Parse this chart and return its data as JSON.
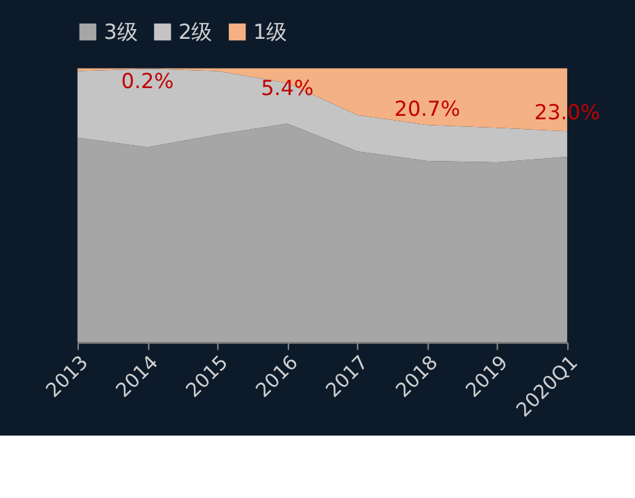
{
  "chart_data": {
    "type": "area",
    "stacked": true,
    "legend": "top",
    "categories": [
      "2013",
      "2014",
      "2015",
      "2016",
      "2017",
      "2018",
      "2019",
      "2020Q1"
    ],
    "series": [
      {
        "name": "3级",
        "color": "#a6a6a6",
        "values": [
          74.7,
          71.2,
          75.8,
          79.8,
          69.7,
          66.2,
          65.7,
          67.7
        ]
      },
      {
        "name": "2级",
        "color": "#c4c4c4",
        "values": [
          24.3,
          28.6,
          23.2,
          14.8,
          13.3,
          13.1,
          12.6,
          9.3
        ]
      },
      {
        "name": "1级",
        "color": "#f4b183",
        "values": [
          1.0,
          0.2,
          1.0,
          5.4,
          17.0,
          20.7,
          21.7,
          23.0
        ],
        "value_labels": [
          null,
          "0.2%",
          null,
          "5.4%",
          null,
          "20.7%",
          null,
          "23.0%"
        ]
      }
    ]
  }
}
